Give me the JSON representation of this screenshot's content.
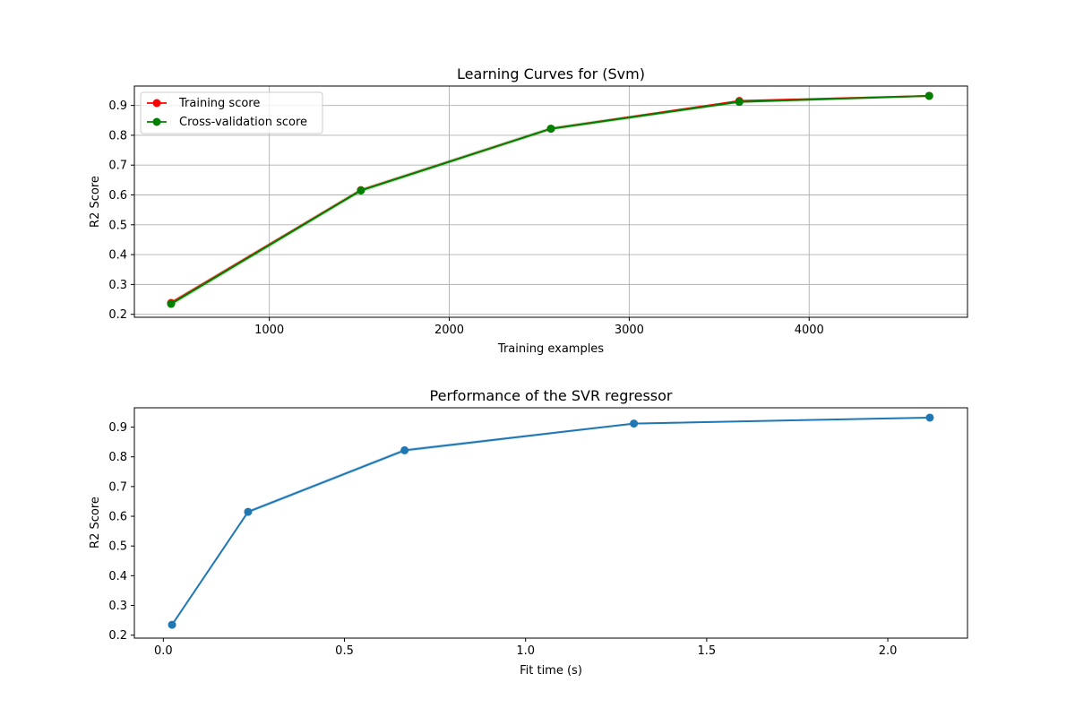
{
  "chart_data": [
    {
      "type": "line",
      "title": "Learning Curves for (Svm)",
      "xlabel": "Training examples",
      "ylabel": "R2 Score",
      "grid": true,
      "legend_position": "top-left",
      "xlim": [
        250,
        4880
      ],
      "ylim": [
        0.19,
        0.965
      ],
      "xticks": [
        1000,
        2000,
        3000,
        4000
      ],
      "yticks": [
        0.2,
        0.3,
        0.4,
        0.5,
        0.6,
        0.7,
        0.8,
        0.9
      ],
      "x": [
        454,
        1509,
        2565,
        3612,
        4667
      ],
      "series": [
        {
          "name": "Training score",
          "color": "#ff0000",
          "values": [
            0.238,
            0.616,
            0.822,
            0.915,
            0.932
          ],
          "band": [
            0.231,
            0.612,
            0.818,
            0.911,
            0.929,
            0.245,
            0.62,
            0.826,
            0.919,
            0.935
          ]
        },
        {
          "name": "Cross-validation score",
          "color": "#008000",
          "values": [
            0.235,
            0.615,
            0.822,
            0.912,
            0.932
          ],
          "band": [
            0.226,
            0.607,
            0.815,
            0.907,
            0.929,
            0.244,
            0.623,
            0.829,
            0.917,
            0.935
          ]
        }
      ]
    },
    {
      "type": "line",
      "title": "Performance of the SVR regressor",
      "xlabel": "Fit time (s)",
      "ylabel": "R2 Score",
      "grid": false,
      "xlim": [
        -0.08,
        2.22
      ],
      "ylim": [
        0.19,
        0.965
      ],
      "xticks": [
        0.0,
        0.5,
        1.0,
        1.5,
        2.0
      ],
      "xtick_labels": [
        "0.0",
        "0.5",
        "1.0",
        "1.5",
        "2.0"
      ],
      "yticks": [
        0.2,
        0.3,
        0.4,
        0.5,
        0.6,
        0.7,
        0.8,
        0.9
      ],
      "x": [
        0.024,
        0.234,
        0.666,
        1.299,
        2.116
      ],
      "series": [
        {
          "color": "#1f77b4",
          "values": [
            0.235,
            0.615,
            0.822,
            0.912,
            0.932
          ],
          "band": [
            0.233,
            0.609,
            0.816,
            0.909,
            0.93,
            0.237,
            0.621,
            0.828,
            0.915,
            0.934
          ]
        }
      ]
    }
  ]
}
